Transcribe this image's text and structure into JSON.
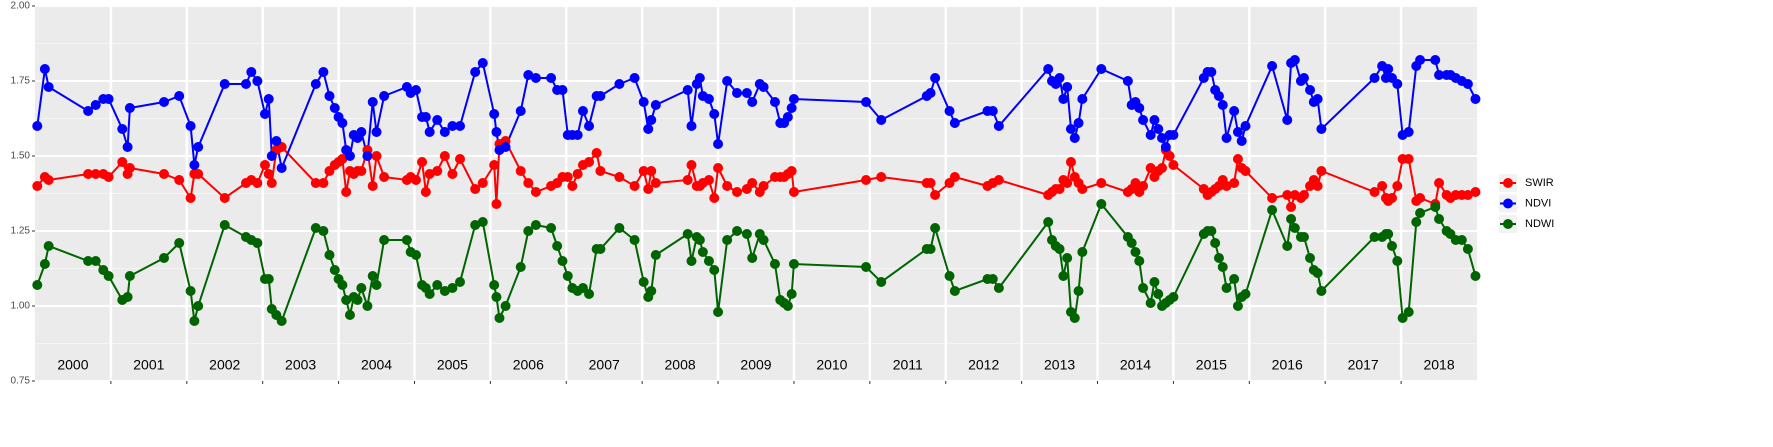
{
  "chart_data": {
    "type": "line",
    "xlim": [
      2000,
      2019
    ],
    "ylim": [
      0.75,
      2.0
    ],
    "yticks": [
      {
        "value": 0.75,
        "label": "0.75"
      },
      {
        "value": 1.0,
        "label": "1.00"
      },
      {
        "value": 1.25,
        "label": "1.25"
      },
      {
        "value": 1.5,
        "label": "1.50"
      },
      {
        "value": 1.75,
        "label": "1.75"
      },
      {
        "value": 2.0,
        "label": "2.00"
      }
    ],
    "minor_yticks": [
      0.875,
      1.125,
      1.375,
      1.625,
      1.875
    ],
    "xticks": [
      {
        "value": 2000.5,
        "label": "2000"
      },
      {
        "value": 2001.5,
        "label": "2001"
      },
      {
        "value": 2002.5,
        "label": "2002"
      },
      {
        "value": 2003.5,
        "label": "2003"
      },
      {
        "value": 2004.5,
        "label": "2004"
      },
      {
        "value": 2005.5,
        "label": "2005"
      },
      {
        "value": 2006.5,
        "label": "2006"
      },
      {
        "value": 2007.5,
        "label": "2007"
      },
      {
        "value": 2008.5,
        "label": "2008"
      },
      {
        "value": 2009.5,
        "label": "2009"
      },
      {
        "value": 2010.5,
        "label": "2010"
      },
      {
        "value": 2011.5,
        "label": "2011"
      },
      {
        "value": 2012.5,
        "label": "2012"
      },
      {
        "value": 2013.5,
        "label": "2013"
      },
      {
        "value": 2014.5,
        "label": "2014"
      },
      {
        "value": 2015.5,
        "label": "2015"
      },
      {
        "value": 2016.5,
        "label": "2016"
      },
      {
        "value": 2017.5,
        "label": "2017"
      },
      {
        "value": 2018.5,
        "label": "2018"
      }
    ],
    "year_boundaries": [
      2001,
      2002,
      2003,
      2004,
      2005,
      2006,
      2007,
      2008,
      2009,
      2010,
      2011,
      2012,
      2013,
      2014,
      2015,
      2016,
      2017,
      2018
    ],
    "grid": true,
    "legend": "right",
    "x": [
      2000.03,
      2000.13,
      2000.18,
      2000.7,
      2000.8,
      2000.9,
      2000.97,
      2001.15,
      2001.22,
      2001.25,
      2001.7,
      2001.9,
      2002.05,
      2002.1,
      2002.15,
      2002.5,
      2002.78,
      2002.85,
      2002.93,
      2003.03,
      2003.08,
      2003.12,
      2003.18,
      2003.25,
      2003.7,
      2003.8,
      2003.88,
      2003.95,
      2004.0,
      2004.05,
      2004.1,
      2004.15,
      2004.2,
      2004.25,
      2004.3,
      2004.38,
      2004.45,
      2004.5,
      2004.6,
      2004.9,
      2004.95,
      2005.02,
      2005.1,
      2005.15,
      2005.2,
      2005.3,
      2005.4,
      2005.5,
      2005.6,
      2005.8,
      2005.9,
      2006.05,
      2006.08,
      2006.12,
      2006.2,
      2006.4,
      2006.5,
      2006.6,
      2006.8,
      2006.88,
      2006.95,
      2007.02,
      2007.08,
      2007.15,
      2007.22,
      2007.3,
      2007.4,
      2007.45,
      2007.7,
      2007.9,
      2008.02,
      2008.08,
      2008.12,
      2008.18,
      2008.6,
      2008.65,
      2008.72,
      2008.76,
      2008.8,
      2008.88,
      2008.95,
      2009.0,
      2009.12,
      2009.25,
      2009.38,
      2009.45,
      2009.55,
      2009.6,
      2009.75,
      2009.82,
      2009.87,
      2009.92,
      2009.97,
      2010.0,
      2010.95,
      2011.15,
      2011.75,
      2011.8,
      2011.86,
      2012.05,
      2012.12,
      2012.55,
      2012.62,
      2012.7,
      2013.35,
      2013.4,
      2013.45,
      2013.5,
      2013.55,
      2013.6,
      2013.65,
      2013.7,
      2013.75,
      2013.8,
      2014.05,
      2014.4,
      2014.45,
      2014.5,
      2014.55,
      2014.6,
      2014.7,
      2014.75,
      2014.8,
      2014.85,
      2014.9,
      2014.95,
      2015.0,
      2015.4,
      2015.45,
      2015.5,
      2015.55,
      2015.6,
      2015.65,
      2015.7,
      2015.8,
      2015.85,
      2015.9,
      2015.95,
      2016.3,
      2016.5,
      2016.55,
      2016.6,
      2016.68,
      2016.72,
      2016.8,
      2016.85,
      2016.9,
      2016.95,
      2017.65,
      2017.75,
      2017.8,
      2017.83,
      2017.88,
      2017.95,
      2018.02,
      2018.1,
      2018.2,
      2018.25,
      2018.45,
      2018.5,
      2018.6,
      2018.65,
      2018.72,
      2018.8,
      2018.88,
      2018.98
    ],
    "series": [
      {
        "name": "SWIR",
        "color": "#ff0000",
        "values": [
          1.4,
          1.43,
          1.42,
          1.44,
          1.44,
          1.44,
          1.43,
          1.48,
          1.44,
          1.46,
          1.44,
          1.42,
          1.36,
          1.44,
          1.44,
          1.36,
          1.41,
          1.42,
          1.41,
          1.47,
          1.44,
          1.41,
          1.52,
          1.53,
          1.41,
          1.41,
          1.45,
          1.47,
          1.48,
          1.49,
          1.38,
          1.45,
          1.44,
          1.45,
          1.45,
          1.52,
          1.4,
          1.5,
          1.43,
          1.42,
          1.43,
          1.42,
          1.48,
          1.38,
          1.44,
          1.45,
          1.5,
          1.44,
          1.49,
          1.39,
          1.41,
          1.47,
          1.34,
          1.54,
          1.55,
          1.45,
          1.41,
          1.38,
          1.4,
          1.41,
          1.43,
          1.43,
          1.4,
          1.44,
          1.47,
          1.48,
          1.51,
          1.45,
          1.43,
          1.4,
          1.45,
          1.39,
          1.45,
          1.41,
          1.42,
          1.47,
          1.4,
          1.4,
          1.41,
          1.42,
          1.36,
          1.46,
          1.4,
          1.38,
          1.39,
          1.41,
          1.38,
          1.4,
          1.43,
          1.43,
          1.43,
          1.44,
          1.45,
          1.38,
          1.42,
          1.43,
          1.41,
          1.41,
          1.37,
          1.41,
          1.43,
          1.4,
          1.41,
          1.42,
          1.37,
          1.38,
          1.39,
          1.39,
          1.42,
          1.41,
          1.48,
          1.43,
          1.41,
          1.39,
          1.41,
          1.38,
          1.39,
          1.41,
          1.38,
          1.4,
          1.46,
          1.43,
          1.45,
          1.46,
          1.52,
          1.5,
          1.47,
          1.39,
          1.37,
          1.38,
          1.39,
          1.4,
          1.42,
          1.4,
          1.41,
          1.49,
          1.46,
          1.45,
          1.36,
          1.37,
          1.33,
          1.37,
          1.36,
          1.37,
          1.4,
          1.42,
          1.4,
          1.45,
          1.38,
          1.4,
          1.36,
          1.35,
          1.36,
          1.4,
          1.49,
          1.49,
          1.35,
          1.36,
          1.34,
          1.41,
          1.37,
          1.36,
          1.37,
          1.37,
          1.37,
          1.38
        ]
      },
      {
        "name": "NDVI",
        "color": "#0000ff",
        "values": [
          1.6,
          1.79,
          1.73,
          1.65,
          1.67,
          1.69,
          1.69,
          1.59,
          1.53,
          1.66,
          1.68,
          1.7,
          1.6,
          1.47,
          1.53,
          1.74,
          1.74,
          1.78,
          1.75,
          1.64,
          1.69,
          1.5,
          1.55,
          1.46,
          1.74,
          1.78,
          1.7,
          1.66,
          1.63,
          1.61,
          1.52,
          1.5,
          1.57,
          1.56,
          1.58,
          1.5,
          1.68,
          1.58,
          1.7,
          1.73,
          1.71,
          1.72,
          1.63,
          1.63,
          1.58,
          1.62,
          1.58,
          1.6,
          1.6,
          1.78,
          1.81,
          1.64,
          1.58,
          1.52,
          1.53,
          1.65,
          1.77,
          1.76,
          1.76,
          1.72,
          1.72,
          1.57,
          1.57,
          1.57,
          1.65,
          1.6,
          1.7,
          1.7,
          1.74,
          1.76,
          1.68,
          1.59,
          1.62,
          1.67,
          1.72,
          1.6,
          1.74,
          1.76,
          1.7,
          1.69,
          1.64,
          1.54,
          1.75,
          1.71,
          1.71,
          1.68,
          1.74,
          1.73,
          1.68,
          1.61,
          1.61,
          1.63,
          1.66,
          1.69,
          1.68,
          1.62,
          1.7,
          1.71,
          1.76,
          1.65,
          1.61,
          1.65,
          1.65,
          1.6,
          1.79,
          1.75,
          1.74,
          1.76,
          1.69,
          1.73,
          1.59,
          1.56,
          1.61,
          1.69,
          1.79,
          1.75,
          1.67,
          1.68,
          1.66,
          1.62,
          1.57,
          1.62,
          1.59,
          1.56,
          1.53,
          1.57,
          1.57,
          1.76,
          1.78,
          1.78,
          1.72,
          1.7,
          1.67,
          1.56,
          1.65,
          1.58,
          1.55,
          1.6,
          1.8,
          1.62,
          1.81,
          1.82,
          1.75,
          1.76,
          1.72,
          1.68,
          1.69,
          1.59,
          1.76,
          1.8,
          1.76,
          1.79,
          1.76,
          1.74,
          1.57,
          1.58,
          1.8,
          1.82,
          1.82,
          1.77,
          1.77,
          1.77,
          1.76,
          1.75,
          1.74,
          1.69
        ]
      },
      {
        "name": "NDWI",
        "color": "#006400",
        "values": [
          1.07,
          1.14,
          1.2,
          1.15,
          1.15,
          1.12,
          1.1,
          1.02,
          1.03,
          1.1,
          1.16,
          1.21,
          1.05,
          0.95,
          1.0,
          1.27,
          1.23,
          1.22,
          1.21,
          1.09,
          1.09,
          0.99,
          0.97,
          0.95,
          1.26,
          1.25,
          1.17,
          1.12,
          1.09,
          1.07,
          1.02,
          0.97,
          1.03,
          1.02,
          1.06,
          1.0,
          1.1,
          1.07,
          1.22,
          1.22,
          1.18,
          1.17,
          1.07,
          1.06,
          1.04,
          1.07,
          1.05,
          1.06,
          1.08,
          1.27,
          1.28,
          1.07,
          1.03,
          0.96,
          1.0,
          1.13,
          1.25,
          1.27,
          1.26,
          1.2,
          1.15,
          1.1,
          1.06,
          1.05,
          1.06,
          1.04,
          1.19,
          1.19,
          1.26,
          1.22,
          1.08,
          1.03,
          1.05,
          1.17,
          1.24,
          1.15,
          1.23,
          1.22,
          1.18,
          1.15,
          1.12,
          0.98,
          1.22,
          1.25,
          1.24,
          1.16,
          1.24,
          1.22,
          1.14,
          1.02,
          1.01,
          1.0,
          1.04,
          1.14,
          1.13,
          1.08,
          1.19,
          1.19,
          1.26,
          1.1,
          1.05,
          1.09,
          1.09,
          1.06,
          1.28,
          1.22,
          1.2,
          1.19,
          1.1,
          1.16,
          0.98,
          0.96,
          1.05,
          1.18,
          1.34,
          1.23,
          1.21,
          1.18,
          1.15,
          1.06,
          1.01,
          1.08,
          1.04,
          1.0,
          1.01,
          1.02,
          1.03,
          1.24,
          1.25,
          1.25,
          1.21,
          1.16,
          1.13,
          1.06,
          1.09,
          1.0,
          1.03,
          1.04,
          1.32,
          1.2,
          1.29,
          1.26,
          1.23,
          1.23,
          1.16,
          1.12,
          1.11,
          1.05,
          1.23,
          1.23,
          1.24,
          1.24,
          1.2,
          1.15,
          0.96,
          0.98,
          1.28,
          1.31,
          1.33,
          1.29,
          1.25,
          1.24,
          1.22,
          1.22,
          1.19,
          1.1
        ]
      }
    ]
  }
}
